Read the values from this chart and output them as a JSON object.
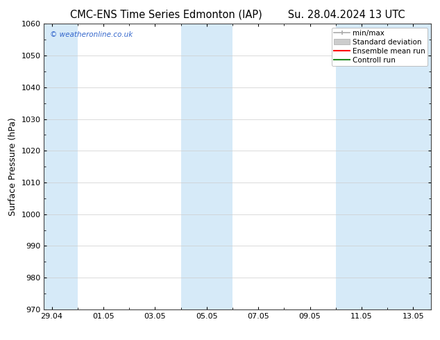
{
  "title_left": "CMC-ENS Time Series Edmonton (IAP)",
  "title_right": "Su. 28.04.2024 13 UTC",
  "ylabel": "Surface Pressure (hPa)",
  "ylim": [
    970,
    1060
  ],
  "yticks": [
    970,
    980,
    990,
    1000,
    1010,
    1020,
    1030,
    1040,
    1050,
    1060
  ],
  "x_tick_labels": [
    "29.04",
    "01.05",
    "03.05",
    "05.05",
    "07.05",
    "09.05",
    "11.05",
    "13.05"
  ],
  "x_tick_positions": [
    0,
    2,
    4,
    6,
    8,
    10,
    12,
    14
  ],
  "x_lim": [
    -0.3,
    14.7
  ],
  "shaded_bands": [
    {
      "x_start": -0.3,
      "x_end": 1.0,
      "color": "#d6eaf8"
    },
    {
      "x_start": 5.0,
      "x_end": 7.0,
      "color": "#d6eaf8"
    },
    {
      "x_start": 11.0,
      "x_end": 14.7,
      "color": "#d6eaf8"
    }
  ],
  "background_color": "#ffffff",
  "plot_bg_color": "#ffffff",
  "grid_color": "#cccccc",
  "watermark_text": "© weatheronline.co.uk",
  "watermark_color": "#3366cc",
  "legend_items": [
    {
      "label": "min/max",
      "color": "#aaaaaa",
      "style": "line_with_caps"
    },
    {
      "label": "Standard deviation",
      "color": "#cccccc",
      "style": "filled_rect"
    },
    {
      "label": "Ensemble mean run",
      "color": "#ff0000",
      "style": "line"
    },
    {
      "label": "Controll run",
      "color": "#228b22",
      "style": "line"
    }
  ],
  "title_fontsize": 10.5,
  "axis_label_fontsize": 9,
  "tick_fontsize": 8,
  "legend_fontsize": 7.5
}
